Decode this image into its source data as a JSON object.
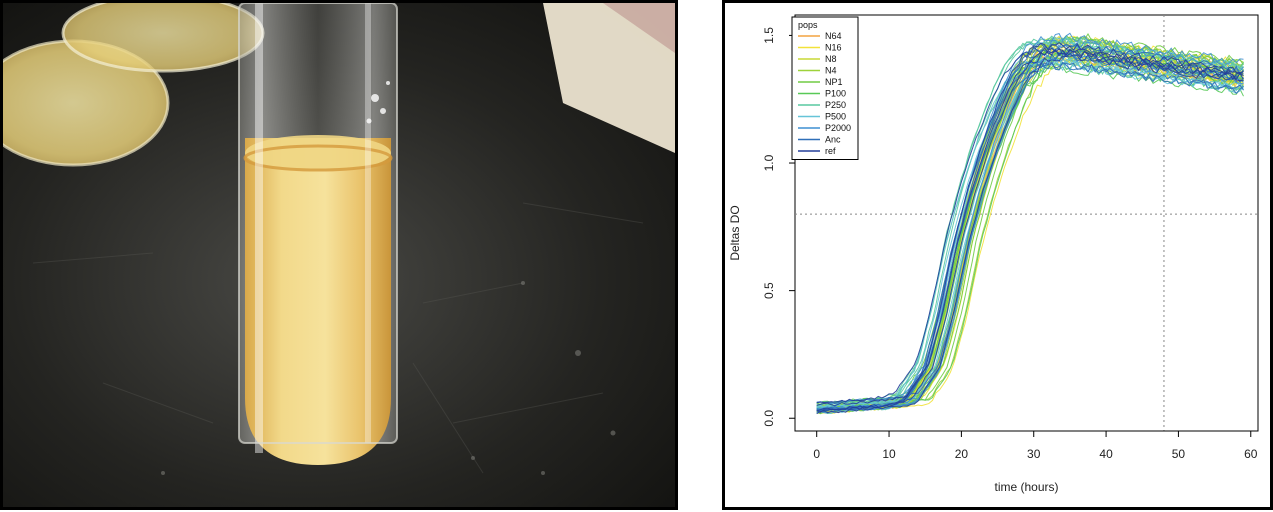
{
  "chart_data": {
    "type": "line",
    "xlabel": "time (hours)",
    "ylabel": "Deltas DO",
    "xlim": [
      -3,
      61
    ],
    "ylim": [
      -0.05,
      1.58
    ],
    "x_ticks": [
      "0",
      "10",
      "20",
      "30",
      "40",
      "50",
      "60"
    ],
    "y_ticks": [
      "0.0",
      "0.5",
      "1.0",
      "1.5"
    ],
    "reference_lines": {
      "x": 48,
      "y": 0.8
    },
    "legend": {
      "title": "pops",
      "position": "top-left",
      "entries": [
        {
          "label": "N64",
          "color": "#f4a340"
        },
        {
          "label": "N16",
          "color": "#f2e23a"
        },
        {
          "label": "N8",
          "color": "#c8d836"
        },
        {
          "label": "N4",
          "color": "#9ed23b"
        },
        {
          "label": "NP1",
          "color": "#70cc44"
        },
        {
          "label": "P100",
          "color": "#58c957"
        },
        {
          "label": "P250",
          "color": "#59c9a0"
        },
        {
          "label": "P500",
          "color": "#66c4d8"
        },
        {
          "label": "P2000",
          "color": "#3f8fd2"
        },
        {
          "label": "Anc",
          "color": "#2f6fb8"
        },
        {
          "label": "ref",
          "color": "#243f9a"
        }
      ]
    },
    "series_template": {
      "x": [
        0,
        5,
        10,
        13,
        16,
        18,
        20,
        22,
        24,
        26,
        28,
        30,
        32,
        36,
        40,
        45,
        50,
        55,
        59
      ],
      "y": [
        0.03,
        0.04,
        0.05,
        0.07,
        0.2,
        0.42,
        0.7,
        0.92,
        1.1,
        1.25,
        1.38,
        1.45,
        1.48,
        1.48,
        1.46,
        1.44,
        1.42,
        1.4,
        1.38
      ]
    },
    "grid": false
  }
}
